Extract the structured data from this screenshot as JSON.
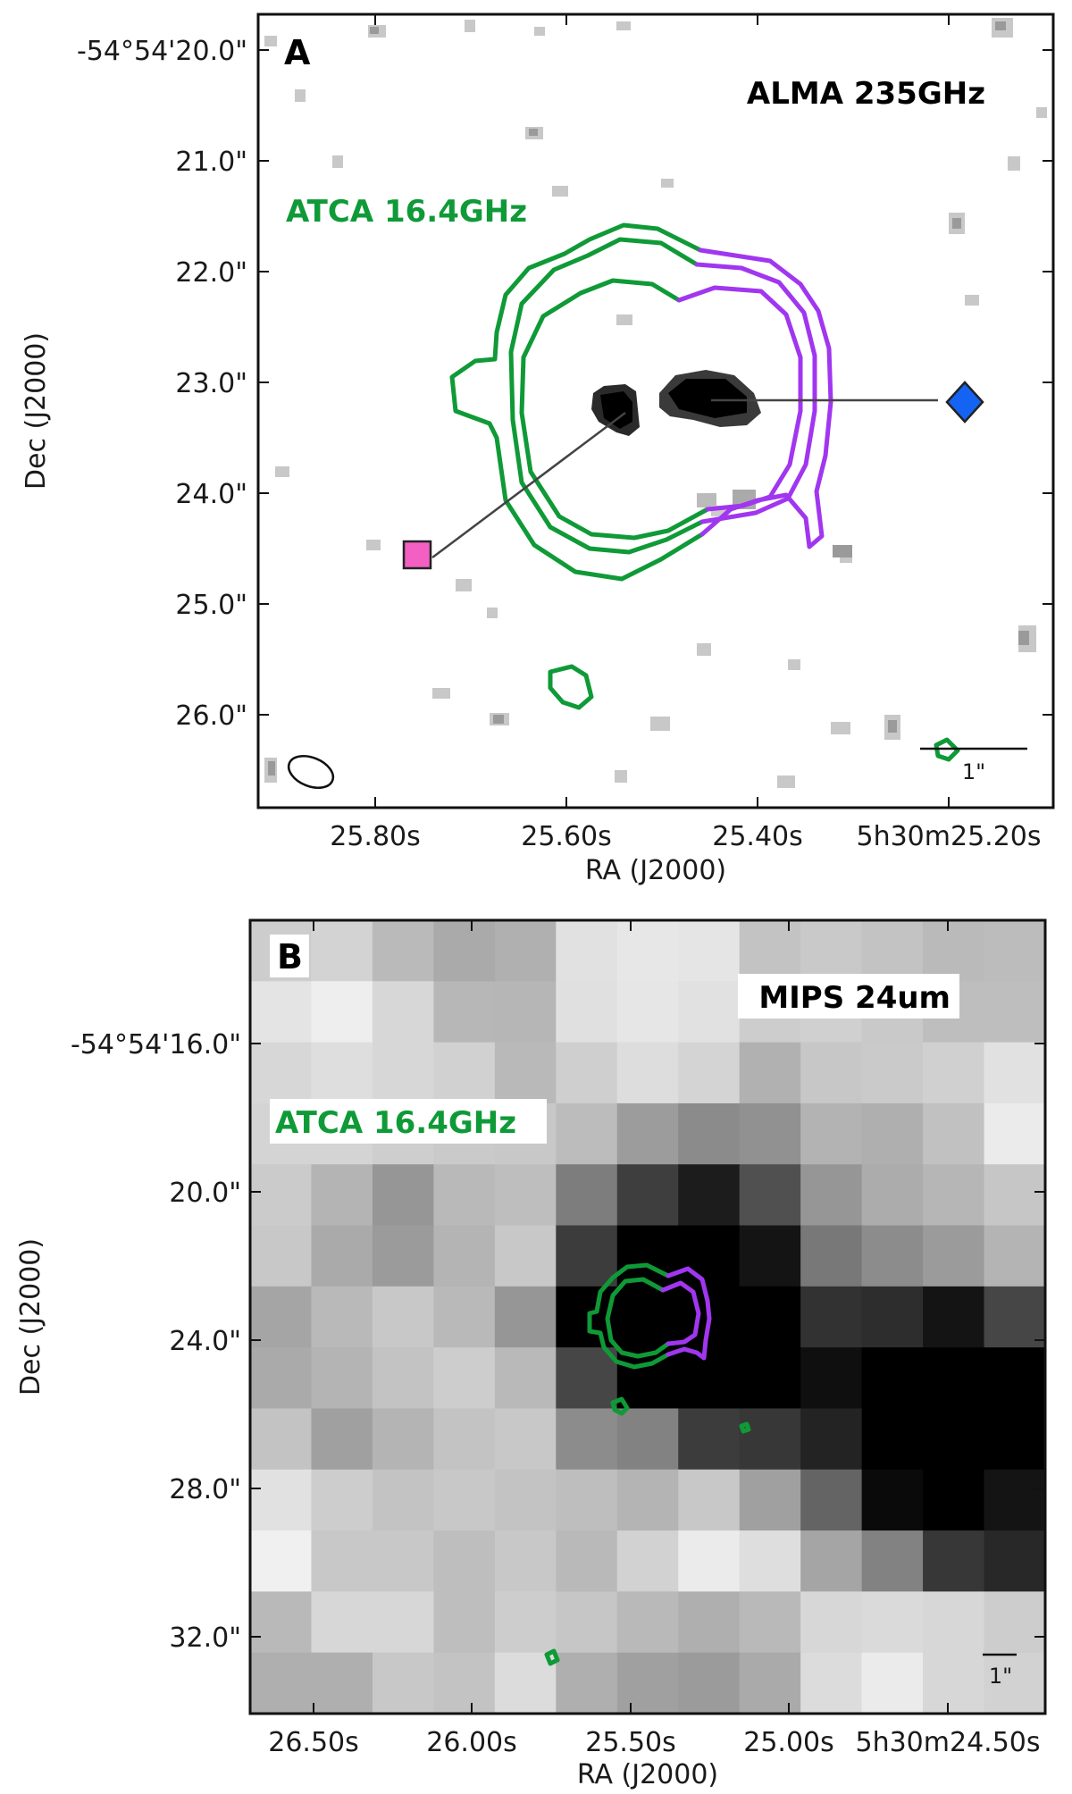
{
  "colors": {
    "green": "#0f9a37",
    "purple": "#a136f0",
    "pink": "#f35fc3",
    "blue": "#1463f3",
    "black": "#000000"
  },
  "panelA": {
    "letter": "A",
    "instrument_label": "ALMA 235GHz",
    "overlay_label": "ATCA 16.4GHz",
    "scale_bar_label": "1\"",
    "xlabel": "RA (J2000)",
    "ylabel": "Dec (J2000)",
    "x_ticks": [
      "25.80s",
      "25.60s",
      "25.40s",
      "5h30m25.20s"
    ],
    "y_ticks": [
      "-54°54'20.0\"",
      "21.0\"",
      "22.0\"",
      "23.0\"",
      "24.0\"",
      "25.0\"",
      "26.0\""
    ],
    "markers": [
      {
        "shape": "square",
        "color_key": "pink",
        "icon": "square-marker-icon"
      },
      {
        "shape": "diamond",
        "color_key": "blue",
        "icon": "diamond-marker-icon"
      }
    ],
    "beam_icon": "beam-ellipse-icon"
  },
  "panelB": {
    "letter": "B",
    "instrument_label": "MIPS 24um",
    "overlay_label": "ATCA 16.4GHz",
    "scale_bar_label": "1\"",
    "xlabel": "RA (J2000)",
    "ylabel": "Dec (J2000)",
    "x_ticks": [
      "26.50s",
      "26.00s",
      "25.50s",
      "25.00s",
      "5h30m24.50s"
    ],
    "y_ticks": [
      "-54°54'16.0\"",
      "20.0\"",
      "24.0\"",
      "28.0\"",
      "32.0\""
    ],
    "pixel_grid": [
      [
        205,
        211,
        186,
        170,
        176,
        225,
        231,
        229,
        195,
        201,
        195,
        186,
        188
      ],
      [
        228,
        238,
        215,
        183,
        182,
        224,
        230,
        225,
        205,
        208,
        201,
        190,
        190
      ],
      [
        215,
        222,
        215,
        209,
        185,
        207,
        221,
        212,
        177,
        199,
        202,
        208,
        225
      ],
      [
        212,
        212,
        206,
        202,
        200,
        188,
        156,
        139,
        145,
        179,
        175,
        193,
        235
      ],
      [
        203,
        180,
        150,
        185,
        190,
        125,
        62,
        28,
        80,
        150,
        172,
        182,
        198
      ],
      [
        200,
        170,
        155,
        180,
        200,
        60,
        0,
        0,
        20,
        120,
        140,
        155,
        180
      ],
      [
        165,
        185,
        200,
        185,
        150,
        0,
        0,
        0,
        0,
        50,
        45,
        20,
        70
      ],
      [
        170,
        180,
        195,
        205,
        185,
        70,
        0,
        0,
        0,
        15,
        0,
        0,
        0
      ],
      [
        195,
        160,
        180,
        195,
        200,
        140,
        130,
        60,
        55,
        35,
        0,
        0,
        0
      ],
      [
        225,
        205,
        195,
        200,
        195,
        190,
        180,
        200,
        160,
        100,
        10,
        0,
        20
      ],
      [
        240,
        200,
        200,
        190,
        200,
        185,
        210,
        235,
        222,
        165,
        130,
        55,
        40
      ],
      [
        185,
        215,
        215,
        190,
        205,
        198,
        185,
        175,
        185,
        215,
        218,
        215,
        205
      ],
      [
        175,
        175,
        200,
        195,
        220,
        175,
        160,
        155,
        170,
        220,
        235,
        215,
        210
      ]
    ]
  }
}
